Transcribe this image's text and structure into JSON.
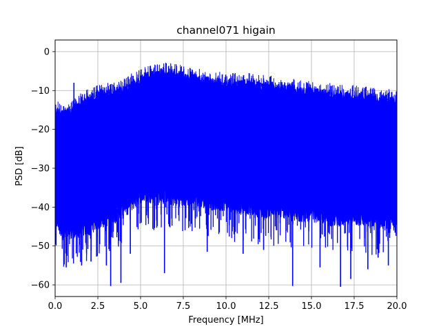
{
  "chart_data": {
    "type": "line",
    "title": "channel071 higain",
    "xlabel": "Frequency [MHz]",
    "ylabel": "PSD [dB]",
    "xlim": [
      0,
      20
    ],
    "ylim": [
      -63,
      3
    ],
    "xticks": [
      0,
      2.5,
      5,
      7.5,
      10,
      12.5,
      15,
      17.5,
      20
    ],
    "xtick_labels": [
      "0.0",
      "2.5",
      "5.0",
      "7.5",
      "10.0",
      "12.5",
      "15.0",
      "17.5",
      "20.0"
    ],
    "yticks": [
      0,
      -10,
      -20,
      -30,
      -40,
      -50,
      -60
    ],
    "ytick_labels": [
      "0",
      "−10",
      "−20",
      "−30",
      "−40",
      "−50",
      "−60"
    ],
    "grid": true,
    "series_color": "#0000ff",
    "envelope": {
      "x": [
        0.0,
        0.5,
        1.0,
        1.5,
        2.0,
        2.5,
        3.0,
        3.5,
        4.0,
        4.5,
        5.0,
        5.5,
        6.0,
        6.5,
        7.0,
        7.5,
        8.0,
        8.5,
        9.0,
        9.5,
        10.0,
        10.5,
        11.0,
        11.5,
        12.0,
        12.5,
        13.0,
        13.5,
        14.0,
        14.5,
        15.0,
        15.5,
        16.0,
        16.5,
        17.0,
        17.5,
        18.0,
        18.5,
        19.0,
        19.5,
        20.0
      ],
      "upper": [
        -14,
        -14.5,
        -14,
        -12,
        -11,
        -10,
        -9.5,
        -9,
        -8.5,
        -7,
        -6,
        -5,
        -4.5,
        -4,
        -4.5,
        -5,
        -5.5,
        -6,
        -6.5,
        -6.5,
        -7,
        -7,
        -7,
        -7,
        -7.5,
        -7.5,
        -8,
        -8.5,
        -8.5,
        -9,
        -9,
        -9.5,
        -9.5,
        -10,
        -10,
        -10,
        -10.5,
        -10.5,
        -11,
        -11,
        -11.5
      ],
      "lower": [
        -44,
        -48,
        -47,
        -47,
        -46,
        -45,
        -44,
        -43,
        -41,
        -40,
        -38,
        -38,
        -38,
        -38,
        -39,
        -39,
        -39,
        -39,
        -40,
        -40,
        -40,
        -41,
        -41,
        -41,
        -42,
        -42,
        -42,
        -42,
        -43,
        -43,
        -43,
        -43,
        -44,
        -44,
        -44,
        -44,
        -44,
        -45,
        -45,
        -45,
        -46
      ]
    },
    "dips": [
      {
        "x": 0.65,
        "y": -55.5
      },
      {
        "x": 1.55,
        "y": -55
      },
      {
        "x": 2.1,
        "y": -54
      },
      {
        "x": 3.0,
        "y": -55
      },
      {
        "x": 3.25,
        "y": -60.3
      },
      {
        "x": 3.85,
        "y": -59.5
      },
      {
        "x": 4.4,
        "y": -52
      },
      {
        "x": 6.4,
        "y": -57
      },
      {
        "x": 8.9,
        "y": -51.5
      },
      {
        "x": 11.0,
        "y": -52
      },
      {
        "x": 12.2,
        "y": -51
      },
      {
        "x": 13.9,
        "y": -60.3
      },
      {
        "x": 15.5,
        "y": -55.5
      },
      {
        "x": 16.7,
        "y": -60.5
      },
      {
        "x": 17.3,
        "y": -58.5
      },
      {
        "x": 18.3,
        "y": -56
      },
      {
        "x": 18.9,
        "y": -53
      },
      {
        "x": 19.5,
        "y": -55
      }
    ],
    "peaks": [
      {
        "x": 1.1,
        "y": -8
      },
      {
        "x": 6.5,
        "y": -3
      }
    ]
  }
}
